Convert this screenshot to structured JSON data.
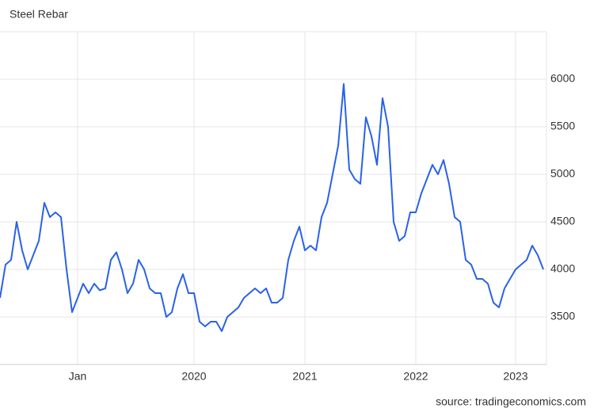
{
  "chart_data": {
    "type": "line",
    "title": "Steel Rebar",
    "source": "source: tradingeconomics.com",
    "categories": [
      null,
      null,
      null,
      null,
      null,
      null,
      null,
      null,
      null,
      null,
      null,
      null,
      null,
      null,
      "Jan",
      null,
      null,
      null,
      null,
      null,
      null,
      null,
      null,
      null,
      null,
      null,
      null,
      null,
      null,
      null,
      null,
      null,
      null,
      null,
      null,
      "2020",
      null,
      null,
      null,
      null,
      null,
      null,
      null,
      null,
      null,
      null,
      null,
      null,
      null,
      null,
      null,
      null,
      null,
      null,
      null,
      "2021",
      null,
      null,
      null,
      null,
      null,
      null,
      null,
      null,
      null,
      null,
      null,
      null,
      null,
      null,
      null,
      null,
      null,
      null,
      null,
      "2022",
      null,
      null,
      null,
      null,
      null,
      null,
      null,
      null,
      null,
      null,
      null,
      null,
      null,
      null,
      null,
      null,
      null,
      "2023",
      null,
      null,
      null,
      null,
      null
    ],
    "values": [
      3700,
      4050,
      4100,
      4500,
      4200,
      4000,
      4150,
      4300,
      4700,
      4550,
      4600,
      4550,
      4000,
      3550,
      3700,
      3850,
      3750,
      3850,
      3780,
      3800,
      4100,
      4180,
      4000,
      3750,
      3850,
      4100,
      4000,
      3800,
      3750,
      3750,
      3500,
      3550,
      3800,
      3950,
      3750,
      3750,
      3450,
      3400,
      3450,
      3450,
      3350,
      3500,
      3550,
      3600,
      3700,
      3750,
      3800,
      3750,
      3800,
      3650,
      3650,
      3700,
      4100,
      4300,
      4450,
      4200,
      4250,
      4200,
      4550,
      4700,
      5000,
      5300,
      5950,
      5050,
      4950,
      4900,
      5600,
      5400,
      5100,
      5800,
      5500,
      4500,
      4300,
      4350,
      4600,
      4600,
      4800,
      4950,
      5100,
      5000,
      5150,
      4900,
      4550,
      4500,
      4100,
      4050,
      3900,
      3900,
      3850,
      3650,
      3600,
      3800,
      3900,
      4000,
      4050,
      4100,
      4250,
      4150,
      4000
    ],
    "color": "#2962e8",
    "ylim": [
      3000,
      6500
    ],
    "yticks": [
      3500,
      4000,
      4500,
      5000,
      5500,
      6000
    ],
    "grid": true
  }
}
